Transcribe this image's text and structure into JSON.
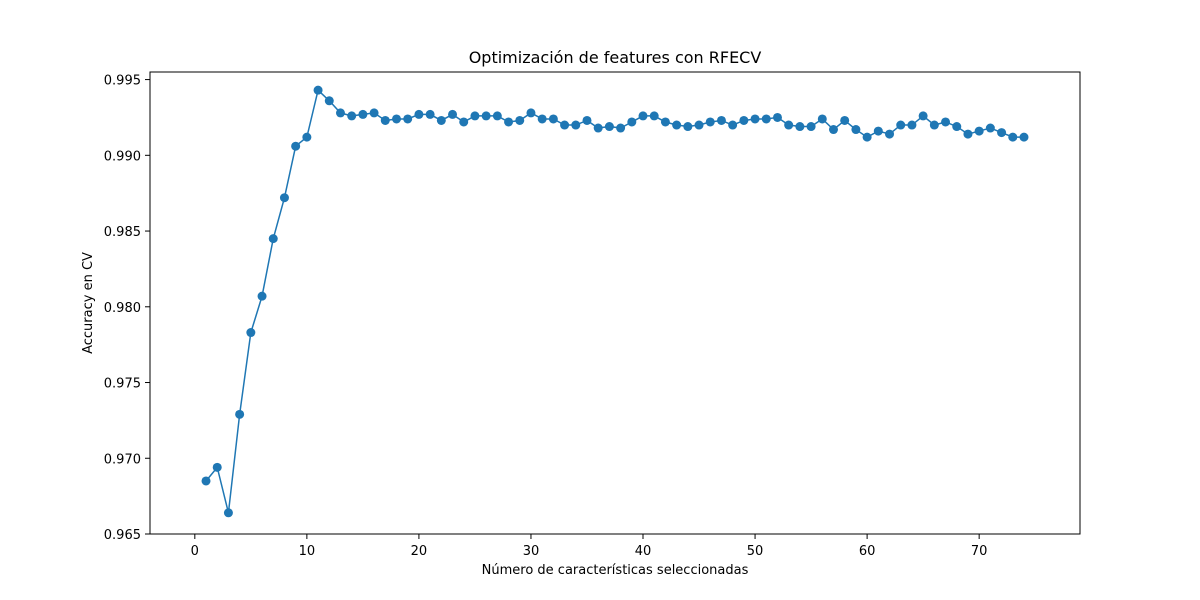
{
  "chart_data": {
    "type": "line",
    "title": "Optimización de features con RFECV",
    "xlabel": "Número de características seleccionadas",
    "ylabel": "Accuracy en CV",
    "xlim": [
      -4,
      79
    ],
    "ylim": [
      0.965,
      0.9955
    ],
    "xticks": [
      0,
      10,
      20,
      30,
      40,
      50,
      60,
      70
    ],
    "xtick_labels": [
      "0",
      "10",
      "20",
      "30",
      "40",
      "50",
      "60",
      "70"
    ],
    "yticks": [
      0.965,
      0.97,
      0.975,
      0.98,
      0.985,
      0.99,
      0.995
    ],
    "ytick_labels": [
      "0.965",
      "0.970",
      "0.975",
      "0.980",
      "0.985",
      "0.990",
      "0.995"
    ],
    "grid": false,
    "series": [
      {
        "color": "#1f77b4",
        "marker": "circle",
        "x": [
          1,
          2,
          3,
          4,
          5,
          6,
          7,
          8,
          9,
          10,
          11,
          12,
          13,
          14,
          15,
          16,
          17,
          18,
          19,
          20,
          21,
          22,
          23,
          24,
          25,
          26,
          27,
          28,
          29,
          30,
          31,
          32,
          33,
          34,
          35,
          36,
          37,
          38,
          39,
          40,
          41,
          42,
          43,
          44,
          45,
          46,
          47,
          48,
          49,
          50,
          51,
          52,
          53,
          54,
          55,
          56,
          57,
          58,
          59,
          60,
          61,
          62,
          63,
          64,
          65,
          66,
          67,
          68,
          69,
          70,
          71,
          72,
          73,
          74
        ],
        "y": [
          0.9685,
          0.9694,
          0.9664,
          0.9729,
          0.9783,
          0.9807,
          0.9845,
          0.9872,
          0.9906,
          0.9912,
          0.9943,
          0.9936,
          0.9928,
          0.9926,
          0.9927,
          0.9928,
          0.9923,
          0.9924,
          0.9924,
          0.9927,
          0.9927,
          0.9923,
          0.9927,
          0.9922,
          0.9926,
          0.9926,
          0.9926,
          0.9922,
          0.9923,
          0.9928,
          0.9924,
          0.9924,
          0.992,
          0.992,
          0.9923,
          0.9918,
          0.9919,
          0.9918,
          0.9922,
          0.9926,
          0.9926,
          0.9922,
          0.992,
          0.9919,
          0.992,
          0.9922,
          0.9923,
          0.992,
          0.9923,
          0.9924,
          0.9924,
          0.9925,
          0.992,
          0.9919,
          0.9919,
          0.9924,
          0.9917,
          0.9923,
          0.9917,
          0.9912,
          0.9916,
          0.9914,
          0.992,
          0.992,
          0.9926,
          0.992,
          0.9922,
          0.9919,
          0.9914,
          0.9916,
          0.9918,
          0.9915,
          0.9912,
          0.9912
        ]
      }
    ]
  }
}
